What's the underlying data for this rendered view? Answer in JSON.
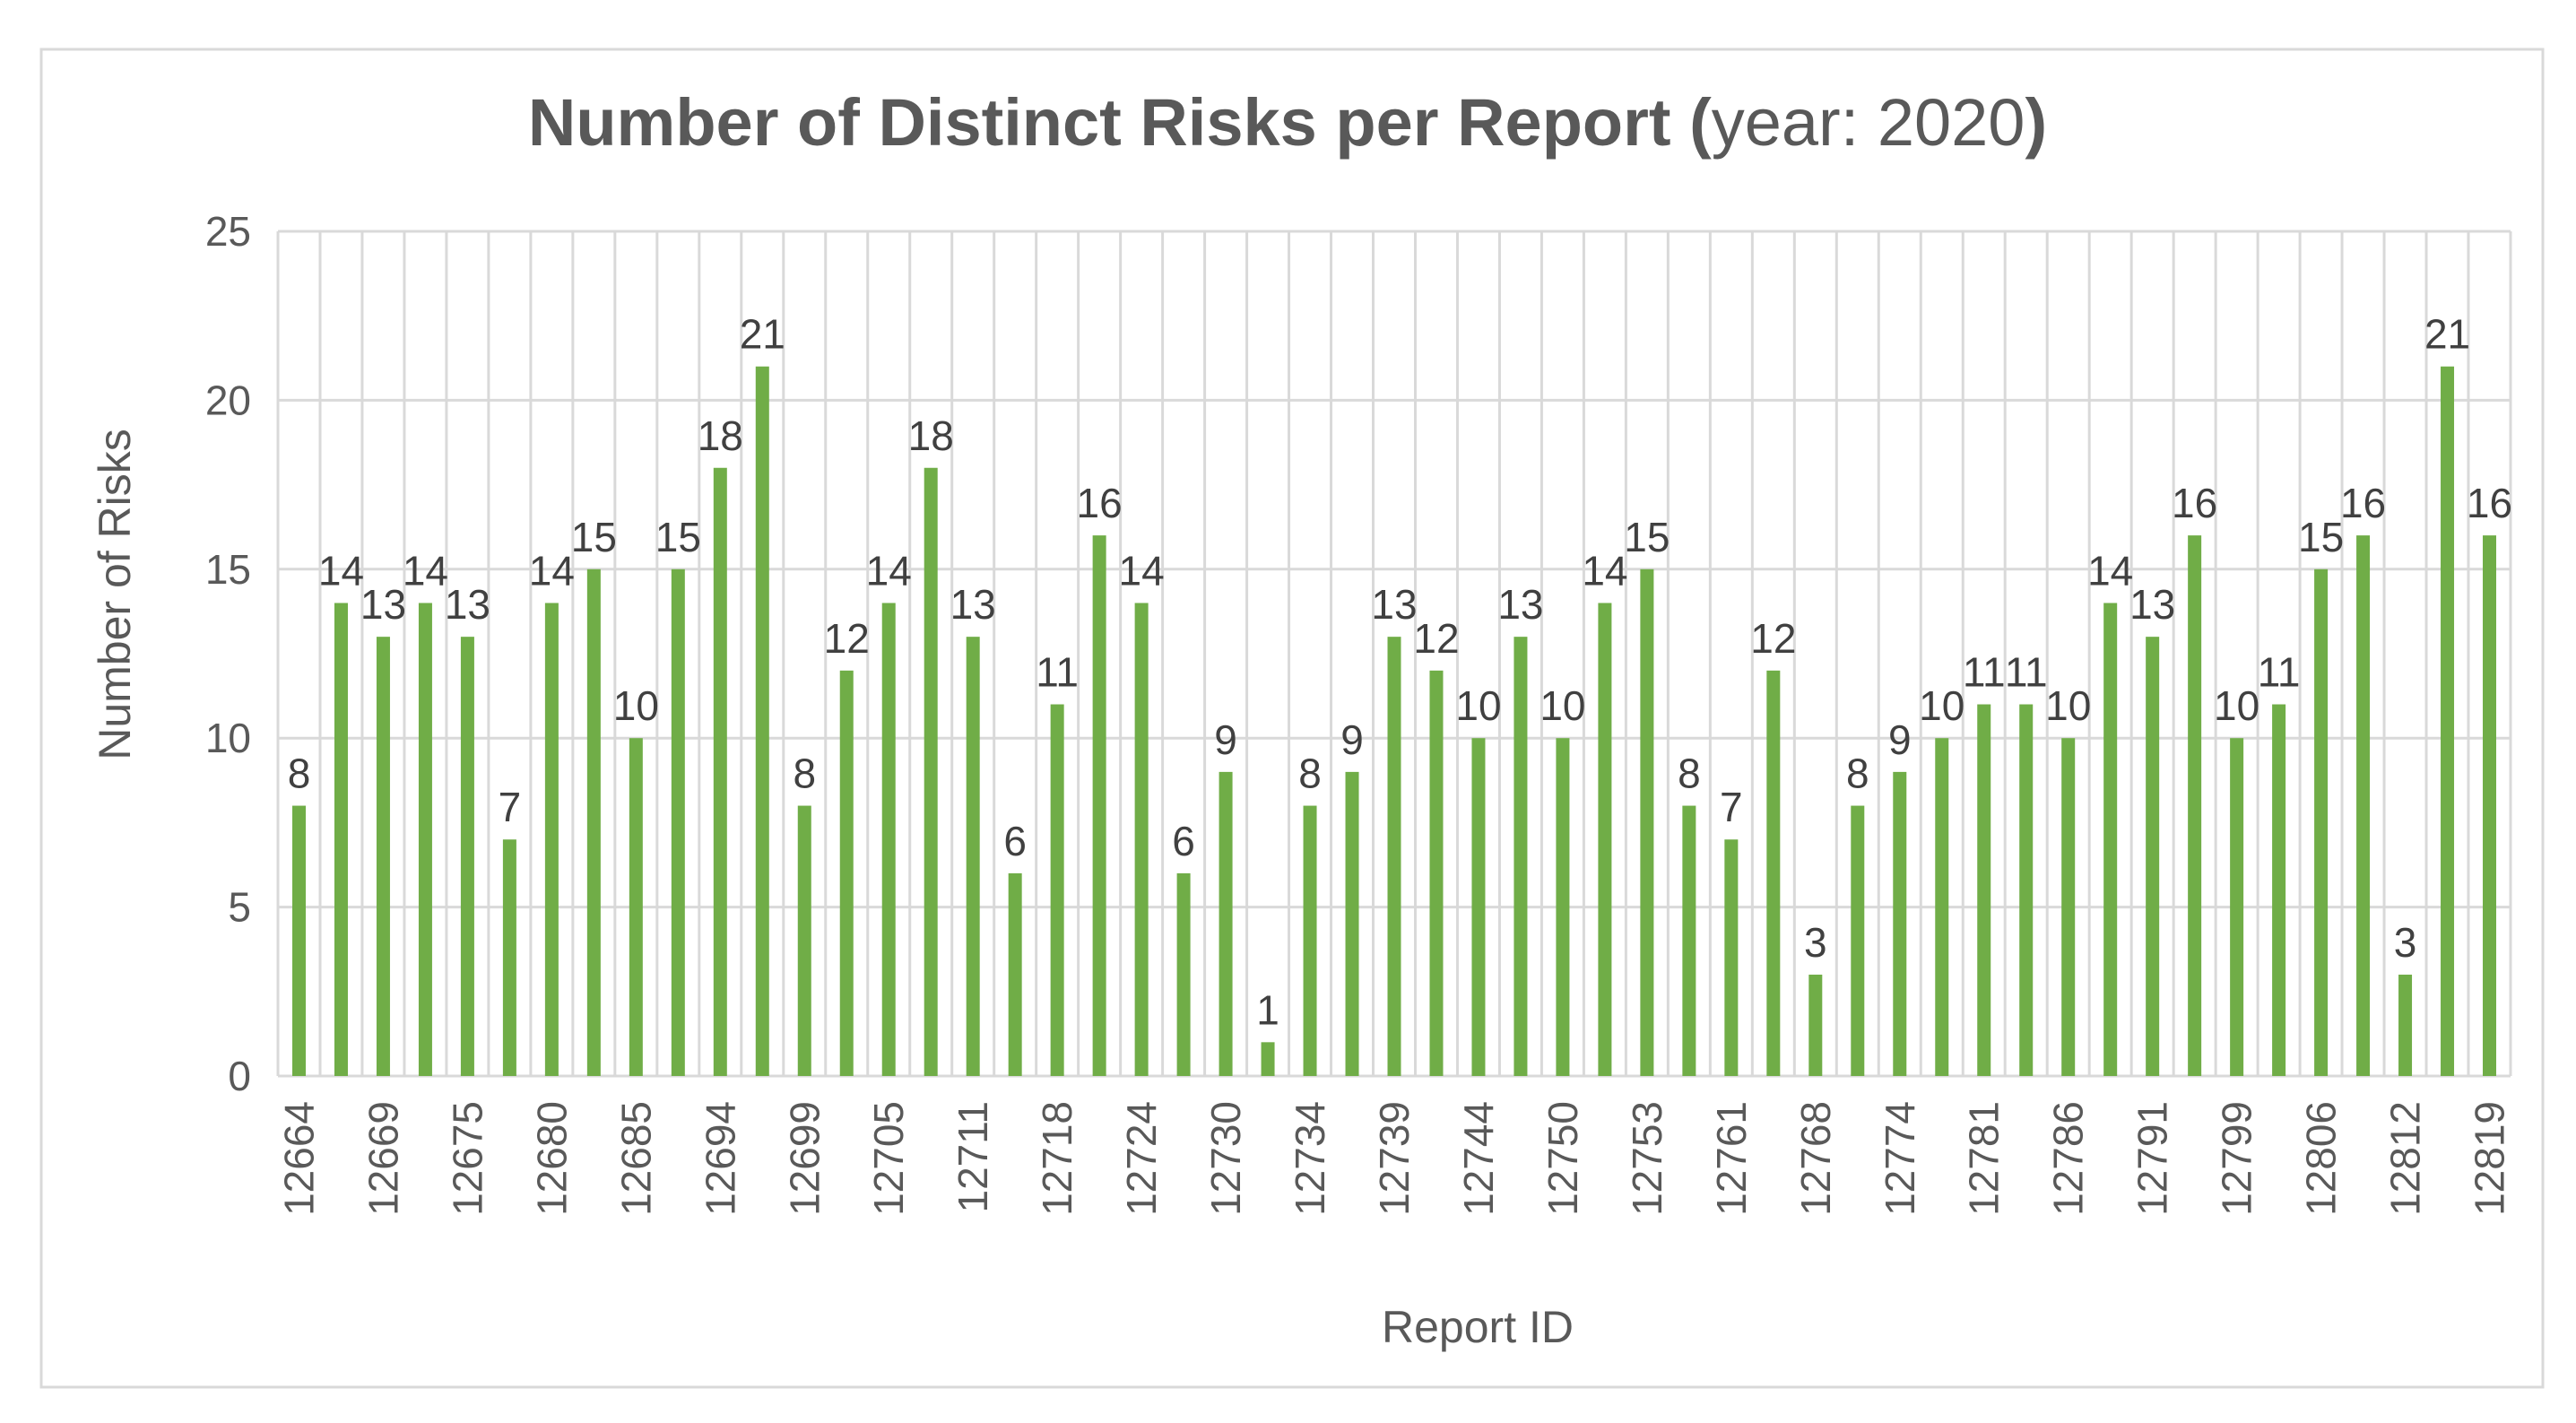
{
  "chart_data": {
    "type": "bar",
    "title_bold": "Number of Distinct Risks per Report (",
    "title_normal": "year:  2020",
    "title_close": ")",
    "xlabel": "Report ID",
    "ylabel": "Number of Risks",
    "ylim": [
      0,
      25
    ],
    "yticks": [
      "0",
      "5",
      "10",
      "15",
      "20",
      "25"
    ],
    "grid": true,
    "legend": "none",
    "bar_color": "#70AD47",
    "categories": [
      "12664",
      "",
      "12669",
      "",
      "12675",
      "",
      "12680",
      "",
      "12685",
      "",
      "12694",
      "",
      "12699",
      "",
      "12705",
      "",
      "12711",
      "",
      "12718",
      "",
      "12724",
      "",
      "12730",
      "",
      "12734",
      "",
      "12739",
      "",
      "12744",
      "",
      "12750",
      "",
      "12753",
      "",
      "12761",
      "",
      "12768",
      "",
      "12774",
      "",
      "12781",
      "",
      "12786",
      "",
      "12791",
      "",
      "12799",
      "",
      "12806",
      "",
      "12812",
      "",
      "12819"
    ],
    "values": [
      8,
      14,
      13,
      14,
      13,
      7,
      14,
      15,
      10,
      15,
      18,
      21,
      8,
      12,
      14,
      18,
      13,
      6,
      11,
      16,
      14,
      6,
      9,
      1,
      8,
      9,
      13,
      12,
      10,
      13,
      10,
      14,
      15,
      8,
      7,
      12,
      3,
      8,
      9,
      10,
      11,
      11,
      10,
      14,
      13,
      16,
      10,
      11,
      15,
      16,
      3,
      21,
      16
    ]
  }
}
